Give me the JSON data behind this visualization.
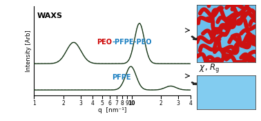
{
  "title": "WAXS",
  "xlabel": "q  [nm⁻¹]",
  "ylabel": "Intensity [Arb]",
  "background": "#ffffff",
  "line_color": "#1a3a1a",
  "dash_color": "#888888",
  "label_peo_color": "#cc0000",
  "label_pfpe_color": "#1a7fc1",
  "box1_facecolor": "#6bbfed",
  "squiggle_color": "#cc1111",
  "box2_facecolor": "#82ccf0",
  "chi_rg_text": "χ , R_g",
  "arrow_color": "#222222",
  "figsize": [
    3.78,
    1.75
  ],
  "dpi": 100,
  "xticks": [
    1,
    2,
    3,
    4,
    5,
    6,
    7,
    8,
    9,
    10,
    20,
    30,
    40
  ],
  "xticklabels": [
    "1",
    "2",
    "3",
    "4",
    "5",
    "6",
    "7",
    "8",
    "9",
    "10",
    "2",
    "3",
    "4"
  ],
  "upper_peaks": [
    {
      "mu": 2.55,
      "sig": 0.17,
      "amp": 0.38
    },
    {
      "mu": 12.0,
      "sig": 0.115,
      "amp": 0.72
    }
  ],
  "upper_base": 0.52,
  "lower_peaks": [
    {
      "mu": 9.8,
      "sig": 0.125,
      "amp": 0.42
    },
    {
      "mu": 25,
      "sig": 0.13,
      "amp": 0.07
    }
  ],
  "lower_base": 0.05,
  "ylim": [
    -0.05,
    1.55
  ],
  "xlim": [
    1.0,
    40.0
  ]
}
